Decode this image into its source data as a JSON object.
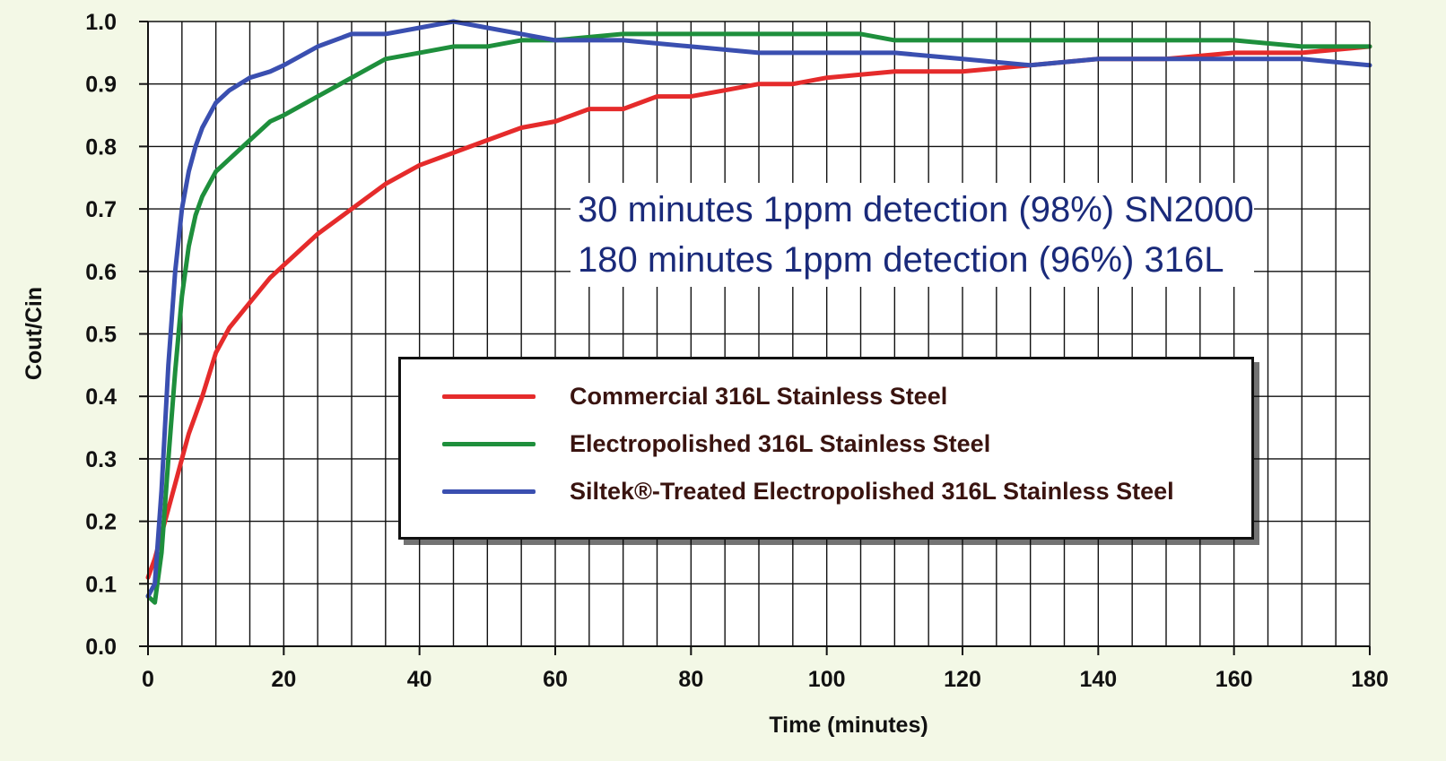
{
  "annotations": {
    "line1": "30 minutes 1ppm detection (98%) SN2000",
    "line2": "180 minutes 1ppm detection (96%) 316L"
  },
  "legend": [
    {
      "label": "Commercial 316L Stainless Steel",
      "color": "#e52b2b"
    },
    {
      "label": "Electropolished 316L Stainless Steel",
      "color": "#1e8f3c"
    },
    {
      "label": "Siltek®-Treated Electropolished 316L Stainless Steel",
      "color": "#3a4fb0"
    }
  ],
  "chart_data": {
    "type": "line",
    "xlabel": "Time (minutes)",
    "ylabel": "Cout/Cin",
    "xlim": [
      0,
      180
    ],
    "ylim": [
      0.0,
      1.0
    ],
    "x_ticks": [
      "0",
      "20",
      "40",
      "60",
      "80",
      "100",
      "120",
      "140",
      "160",
      "180"
    ],
    "y_ticks": [
      "0.0",
      "0.1",
      "0.2",
      "0.3",
      "0.4",
      "0.5",
      "0.6",
      "0.7",
      "0.8",
      "0.9",
      "1.0"
    ],
    "grid": true,
    "legend_position": "center",
    "series": [
      {
        "name": "Commercial 316L Stainless Steel",
        "color": "#e52b2b",
        "x": [
          0,
          1,
          2,
          3,
          4,
          5,
          6,
          8,
          10,
          12,
          15,
          18,
          20,
          25,
          30,
          35,
          40,
          45,
          50,
          55,
          60,
          65,
          70,
          75,
          80,
          85,
          90,
          95,
          100,
          110,
          120,
          130,
          140,
          150,
          160,
          170,
          180
        ],
        "y": [
          0.11,
          0.14,
          0.18,
          0.22,
          0.26,
          0.3,
          0.34,
          0.4,
          0.47,
          0.51,
          0.55,
          0.59,
          0.61,
          0.66,
          0.7,
          0.74,
          0.77,
          0.79,
          0.81,
          0.83,
          0.84,
          0.86,
          0.86,
          0.88,
          0.88,
          0.89,
          0.9,
          0.9,
          0.91,
          0.92,
          0.92,
          0.93,
          0.94,
          0.94,
          0.95,
          0.95,
          0.96
        ]
      },
      {
        "name": "Electropolished 316L Stainless Steel",
        "color": "#1e8f3c",
        "x": [
          0,
          1,
          2,
          3,
          4,
          5,
          6,
          7,
          8,
          10,
          12,
          15,
          18,
          20,
          25,
          30,
          35,
          40,
          45,
          50,
          55,
          60,
          70,
          80,
          90,
          100,
          105,
          110,
          120,
          130,
          140,
          150,
          160,
          170,
          180
        ],
        "y": [
          0.08,
          0.07,
          0.15,
          0.3,
          0.44,
          0.56,
          0.64,
          0.69,
          0.72,
          0.76,
          0.78,
          0.81,
          0.84,
          0.85,
          0.88,
          0.91,
          0.94,
          0.95,
          0.96,
          0.96,
          0.97,
          0.97,
          0.98,
          0.98,
          0.98,
          0.98,
          0.98,
          0.97,
          0.97,
          0.97,
          0.97,
          0.97,
          0.97,
          0.96,
          0.96
        ]
      },
      {
        "name": "Siltek®-Treated Electropolished 316L Stainless Steel",
        "color": "#3a4fb0",
        "x": [
          0,
          1,
          2,
          3,
          4,
          5,
          6,
          7,
          8,
          10,
          12,
          15,
          18,
          20,
          25,
          30,
          35,
          40,
          45,
          50,
          55,
          60,
          65,
          70,
          80,
          90,
          100,
          110,
          120,
          130,
          140,
          150,
          160,
          170,
          180
        ],
        "y": [
          0.08,
          0.1,
          0.25,
          0.45,
          0.6,
          0.7,
          0.76,
          0.8,
          0.83,
          0.87,
          0.89,
          0.91,
          0.92,
          0.93,
          0.96,
          0.98,
          0.98,
          0.99,
          1.0,
          0.99,
          0.98,
          0.97,
          0.97,
          0.97,
          0.96,
          0.95,
          0.95,
          0.95,
          0.94,
          0.93,
          0.94,
          0.94,
          0.94,
          0.94,
          0.93
        ]
      }
    ]
  }
}
